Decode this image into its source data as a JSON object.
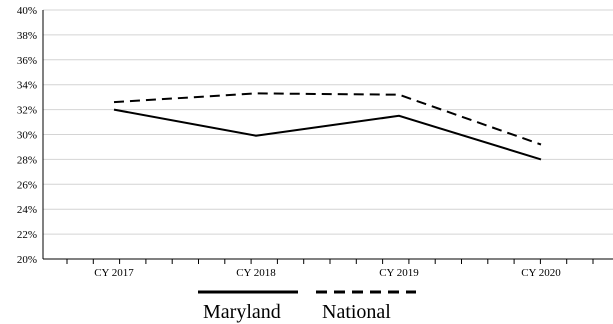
{
  "chart_data": {
    "type": "line",
    "categories": [
      "CY 2017",
      "CY 2018",
      "CY 2019",
      "CY 2020"
    ],
    "series": [
      {
        "name": "Maryland",
        "values": [
          32.0,
          29.9,
          31.5,
          28.0
        ],
        "color": "#000000",
        "dash": "solid"
      },
      {
        "name": "National",
        "values": [
          32.6,
          33.3,
          33.2,
          29.2
        ],
        "color": "#000000",
        "dash": "dashed"
      }
    ],
    "title": "",
    "xlabel": "",
    "ylabel": "",
    "ylim": [
      20,
      40
    ],
    "yticks": [
      "20%",
      "22%",
      "24%",
      "26%",
      "28%",
      "30%",
      "32%",
      "34%",
      "36%",
      "38%",
      "40%"
    ],
    "grid": true,
    "legend_position": "bottom-center"
  }
}
